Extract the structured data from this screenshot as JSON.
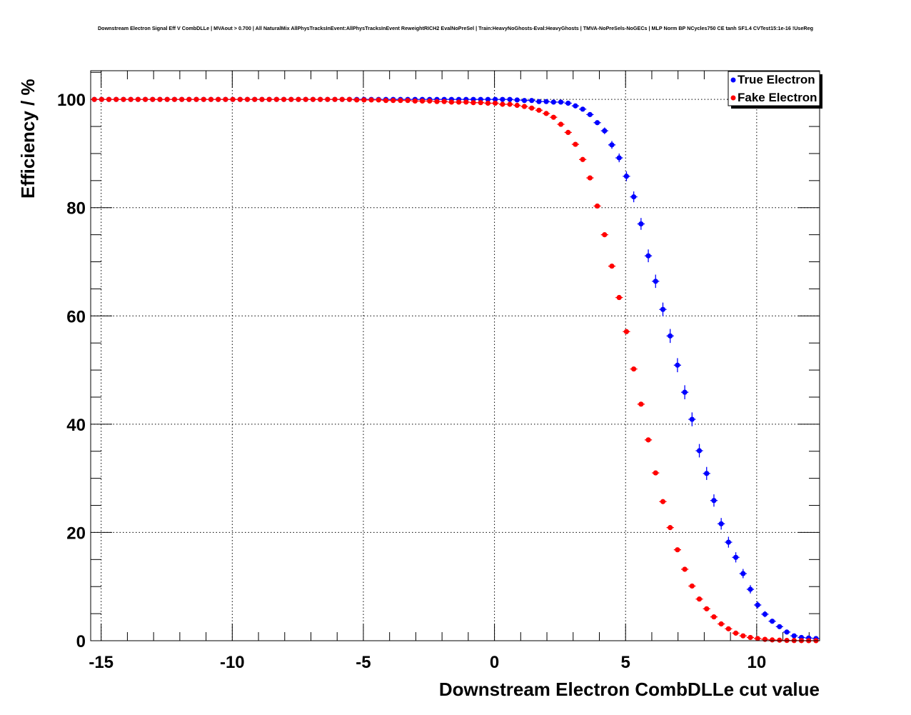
{
  "chart_data": {
    "type": "scatter",
    "title": "Downstream Electron Signal Eff V CombDLLe | MVAout > 0.700 | All NaturalMix AllPhysTracksInEvent:AllPhysTracksInEvent ReweightRICH2 EvalNoPreSel | Train:HeavyNoGhosts-Eval:HeavyGhosts | TMVA-NoPreSels-NoGECs | MLP Norm BP NCycles750 CE tanh SF1.4 CVTest15:1e-16 !UseReg",
    "xlabel": "Downstream Electron CombDLLe cut value",
    "ylabel": "Efficiency / %",
    "xlim": [
      -15.4,
      12.4
    ],
    "ylim": [
      0,
      105.3
    ],
    "x_bins": {
      "start": -15.4,
      "width": 0.278,
      "count": 100
    },
    "xticks": [
      -15,
      -10,
      -5,
      0,
      5,
      10
    ],
    "xtick_labels": [
      "-15",
      "-10",
      "-5",
      "0",
      "5",
      "10"
    ],
    "yticks": [
      0,
      20,
      40,
      60,
      80,
      100
    ],
    "ytick_labels": [
      "0",
      "20",
      "40",
      "60",
      "80",
      "100"
    ],
    "grid": true,
    "legend_position": "top-right",
    "series": [
      {
        "name": "True Electron",
        "color": "#0000ff",
        "values": [
          100,
          100,
          100,
          100,
          100,
          100,
          100,
          100,
          100,
          100,
          100,
          100,
          100,
          100,
          100,
          100,
          100,
          100,
          100,
          100,
          100,
          100,
          100,
          100,
          100,
          100,
          100,
          100,
          100,
          100,
          100,
          100,
          100,
          100,
          100,
          100,
          100,
          100,
          100,
          100,
          100,
          100,
          100,
          100,
          100,
          100,
          100,
          100,
          100,
          100,
          100,
          100,
          100,
          100,
          100,
          100,
          100,
          100,
          99.9,
          99.8,
          99.8,
          99.6,
          99.6,
          99.5,
          99.5,
          99.3,
          98.8,
          98.2,
          97.2,
          95.7,
          94.2,
          91.6,
          89.2,
          85.8,
          82.0,
          77.0,
          71.1,
          66.4,
          61.2,
          56.3,
          50.9,
          45.9,
          40.9,
          35.1,
          30.9,
          25.9,
          21.6,
          18.2,
          15.4,
          12.4,
          9.5,
          6.6,
          4.9,
          3.6,
          2.6,
          1.6,
          0.9,
          0.6,
          0.5,
          0.4
        ]
      },
      {
        "name": "Fake Electron",
        "color": "#ff0000",
        "values": [
          100,
          100,
          100,
          100,
          100,
          100,
          100,
          100,
          100,
          100,
          100,
          100,
          100,
          100,
          100,
          100,
          100,
          100,
          100,
          100,
          100,
          100,
          100,
          100,
          100,
          100,
          100,
          100,
          100,
          100,
          100,
          100,
          100,
          100,
          100,
          100,
          99.9,
          99.9,
          99.9,
          99.9,
          99.8,
          99.8,
          99.8,
          99.8,
          99.7,
          99.7,
          99.7,
          99.6,
          99.6,
          99.5,
          99.5,
          99.5,
          99.4,
          99.4,
          99.3,
          99.3,
          99.1,
          99.1,
          98.9,
          98.7,
          98.4,
          98.0,
          97.4,
          96.7,
          95.4,
          93.9,
          91.7,
          88.9,
          85.5,
          80.3,
          75.0,
          69.2,
          63.4,
          57.1,
          50.2,
          43.7,
          37.1,
          31.0,
          25.7,
          20.9,
          16.8,
          13.2,
          10.1,
          7.7,
          5.9,
          4.4,
          3.1,
          2.2,
          1.4,
          0.9,
          0.6,
          0.4,
          0.25,
          0.15,
          0.1,
          0.05,
          0.03,
          0.02,
          0.01,
          0.01
        ]
      }
    ]
  }
}
